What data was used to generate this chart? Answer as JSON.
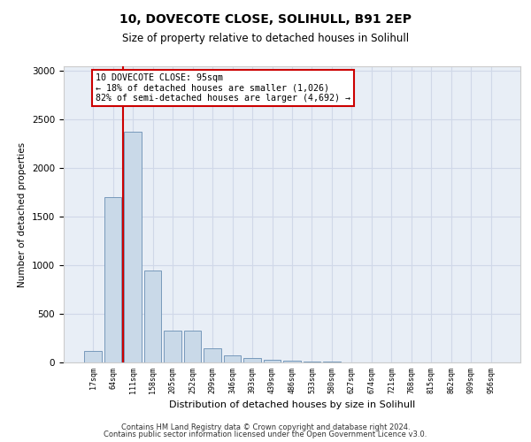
{
  "title1": "10, DOVECOTE CLOSE, SOLIHULL, B91 2EP",
  "title2": "Size of property relative to detached houses in Solihull",
  "xlabel": "Distribution of detached houses by size in Solihull",
  "ylabel": "Number of detached properties",
  "categories": [
    "17sqm",
    "64sqm",
    "111sqm",
    "158sqm",
    "205sqm",
    "252sqm",
    "299sqm",
    "346sqm",
    "393sqm",
    "439sqm",
    "486sqm",
    "533sqm",
    "580sqm",
    "627sqm",
    "674sqm",
    "721sqm",
    "768sqm",
    "815sqm",
    "862sqm",
    "909sqm",
    "956sqm"
  ],
  "values": [
    120,
    1700,
    2380,
    950,
    330,
    330,
    145,
    75,
    45,
    25,
    15,
    8,
    5,
    3,
    2,
    1,
    1,
    1,
    0,
    0,
    0
  ],
  "bar_color": "#c9d9e8",
  "bar_edge_color": "#7799bb",
  "vline_color": "#cc0000",
  "annotation_text": "10 DOVECOTE CLOSE: 95sqm\n← 18% of detached houses are smaller (1,026)\n82% of semi-detached houses are larger (4,692) →",
  "annotation_box_color": "#ffffff",
  "annotation_box_edge": "#cc0000",
  "footnote1": "Contains HM Land Registry data © Crown copyright and database right 2024.",
  "footnote2": "Contains public sector information licensed under the Open Government Licence v3.0.",
  "ylim": [
    0,
    3050
  ],
  "yticks": [
    0,
    500,
    1000,
    1500,
    2000,
    2500,
    3000
  ],
  "grid_color": "#d0d8e8",
  "background_color": "#e8eef6"
}
